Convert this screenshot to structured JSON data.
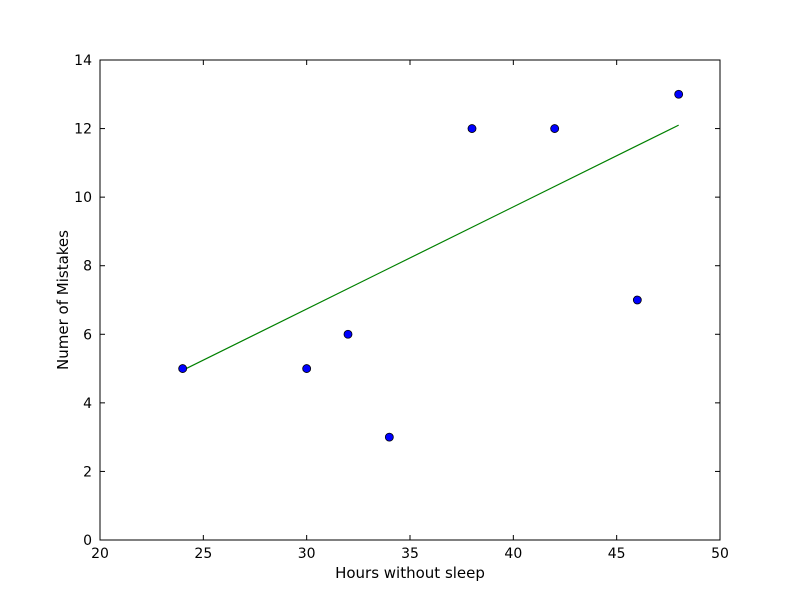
{
  "chart_data": {
    "type": "scatter",
    "title": "",
    "xlabel": "Hours without sleep",
    "ylabel": "Numer of Mistakes",
    "xlim": [
      20,
      50
    ],
    "ylim": [
      0,
      14
    ],
    "xticks": [
      20,
      25,
      30,
      35,
      40,
      45,
      50
    ],
    "yticks": [
      0,
      2,
      4,
      6,
      8,
      10,
      12,
      14
    ],
    "grid": false,
    "legend": "none",
    "series": [
      {
        "type": "scatter",
        "color": "#0000ff",
        "edge_color": "#000000",
        "x": [
          24,
          30,
          32,
          34,
          38,
          42,
          46,
          48
        ],
        "y": [
          5,
          5,
          6,
          3,
          12,
          12,
          7,
          13
        ]
      },
      {
        "type": "line",
        "color": "#008000",
        "x": [
          24,
          48
        ],
        "y": [
          4.95,
          12.1
        ]
      }
    ]
  }
}
